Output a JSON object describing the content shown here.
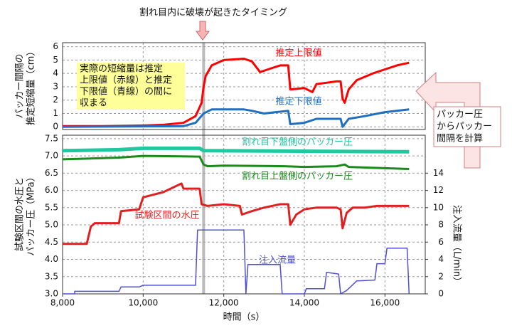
{
  "chart_data": [
    {
      "type": "line",
      "title": "割れ目内に破壊が起きたタイミング",
      "ylabel": [
        "パッカー間隔の",
        "推定短縮量（cm）"
      ],
      "note": [
        "実際の短縮量は推定",
        "上限値（赤線）と推定",
        "下限値（青線）の間に",
        "収まる"
      ],
      "side_note": [
        "パッカー圧",
        "からパッカー",
        "間隔を計算"
      ],
      "xlim": [
        8000,
        17000
      ],
      "ylim": [
        -0.2,
        6.3
      ],
      "yticks": [
        0,
        1,
        2,
        3,
        4,
        5,
        6
      ],
      "grid": true,
      "series": [
        {
          "name": "推定上限値",
          "color": "#ff0000",
          "x": [
            8000,
            9000,
            10000,
            10500,
            11000,
            11300,
            11450,
            11500,
            11550,
            11700,
            12000,
            12500,
            12700,
            12900,
            13100,
            13400,
            13600,
            13650,
            14000,
            14200,
            14300,
            14800,
            14900,
            14950,
            15000,
            15100,
            15300,
            15700,
            16000,
            16300,
            16600
          ],
          "values": [
            0.05,
            0.05,
            0.1,
            0.15,
            0.3,
            0.8,
            1.8,
            3.0,
            3.8,
            4.6,
            5.0,
            5.1,
            4.9,
            4.1,
            4.3,
            4.6,
            4.6,
            2.8,
            2.9,
            2.6,
            3.2,
            3.4,
            3.4,
            2.1,
            1.8,
            2.8,
            3.5,
            4.0,
            4.3,
            4.6,
            4.8
          ]
        },
        {
          "name": "推定下限値",
          "color": "#1f6fc0",
          "x": [
            8000,
            11000,
            11300,
            11500,
            11700,
            12500,
            12700,
            13000,
            13600,
            13650,
            14000,
            14300,
            14900,
            14950,
            15100,
            15500,
            16000,
            16600
          ],
          "values": [
            0.0,
            0.05,
            0.3,
            1.0,
            1.3,
            1.3,
            1.2,
            1.0,
            1.2,
            0.2,
            0.3,
            0.6,
            0.6,
            0.0,
            0.6,
            0.8,
            1.1,
            1.3
          ]
        }
      ]
    },
    {
      "type": "line",
      "xlabel": "時間（s）",
      "ylabel": [
        "試験区間の水圧と",
        "パッカー圧（MPa）"
      ],
      "y2label": "注入流量（L/min）",
      "xlim": [
        8000,
        17000
      ],
      "xticks": [
        {
          "value": 8000,
          "label": "8,000"
        },
        {
          "value": 10000,
          "label": "10,000"
        },
        {
          "value": 12000,
          "label": "12,000"
        },
        {
          "value": 14000,
          "label": "14,000"
        },
        {
          "value": 16000,
          "label": "16,000"
        }
      ],
      "ylim": [
        3.0,
        7.6
      ],
      "yticks": [
        {
          "value": 3.0,
          "label": "3.0"
        },
        3.5,
        {
          "value": 4.0,
          "label": "4.0"
        },
        4.5,
        {
          "value": 5.0,
          "label": "5.0"
        },
        5.5,
        {
          "value": 6.0,
          "label": "6.0"
        },
        6.5,
        {
          "value": 7.0,
          "label": "7.0"
        },
        7.5
      ],
      "y2lim": [
        0,
        18.4
      ],
      "y2ticks": [
        0,
        2,
        4,
        6,
        8,
        10,
        12,
        14
      ],
      "grid": true,
      "series": [
        {
          "name": "割れ目下盤側のパッカー圧",
          "color": "#20c8a0",
          "x": [
            8000,
            9400,
            10000,
            11400,
            11500,
            16600
          ],
          "values": [
            7.15,
            7.18,
            7.22,
            7.22,
            7.15,
            7.12
          ]
        },
        {
          "name": "割れ目上盤側のパッカー圧",
          "color": "#1a8a1a",
          "x": [
            8000,
            9400,
            10000,
            11400,
            11500,
            11600,
            12000,
            13500,
            14000,
            14800,
            15000,
            15100,
            16600
          ],
          "values": [
            6.9,
            6.95,
            7.0,
            6.98,
            6.75,
            6.7,
            6.72,
            6.7,
            6.68,
            6.7,
            6.75,
            6.68,
            6.62
          ]
        },
        {
          "name": "試験区間の水圧",
          "color": "#e02020",
          "x": [
            8000,
            8600,
            8700,
            8800,
            9400,
            9450,
            9900,
            10000,
            10500,
            10950,
            11000,
            11400,
            11450,
            11600,
            12000,
            12400,
            12450,
            12700,
            13000,
            13400,
            13600,
            13650,
            13800,
            14000,
            14300,
            14800,
            14900,
            14950,
            15050,
            15200,
            15500,
            15800,
            16600
          ],
          "values": [
            4.45,
            4.45,
            4.95,
            5.05,
            5.05,
            5.4,
            5.45,
            5.8,
            5.95,
            6.2,
            6.05,
            6.05,
            5.6,
            5.55,
            5.6,
            5.55,
            5.3,
            5.4,
            5.5,
            5.6,
            5.6,
            5.0,
            5.3,
            5.45,
            5.5,
            5.5,
            5.45,
            4.9,
            5.35,
            5.5,
            5.5,
            5.55,
            5.55
          ]
        },
        {
          "name": "注入流量",
          "color": "#5050d0",
          "axis": "y2",
          "x": [
            8000,
            8300,
            8300,
            9400,
            9450,
            9900,
            10000,
            11300,
            11350,
            12500,
            12550,
            12600,
            13400,
            13450,
            14000,
            14050,
            14500,
            14550,
            14850,
            14900,
            15050,
            15300,
            15750,
            15800,
            16000,
            16050,
            16550,
            16600
          ],
          "values": [
            0,
            0,
            0.3,
            0.3,
            0.8,
            0.8,
            1.0,
            1.0,
            7.4,
            7.4,
            0,
            3.4,
            3.4,
            0,
            0,
            0.6,
            0.6,
            2.5,
            2.3,
            0,
            0.4,
            1.5,
            1.6,
            3.5,
            3.5,
            5.3,
            5.3,
            0
          ]
        }
      ]
    }
  ]
}
